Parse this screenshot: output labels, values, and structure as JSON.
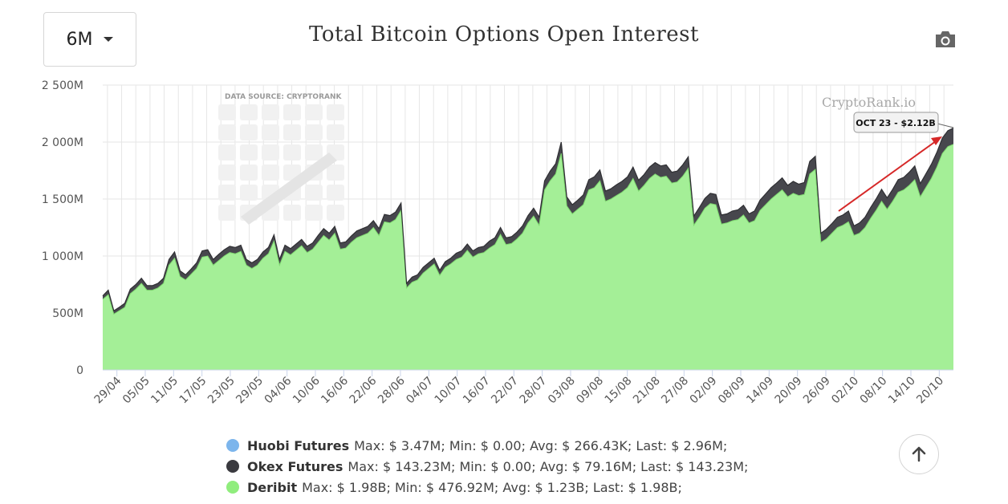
{
  "header": {
    "range_selector": "6M",
    "title": "Total Bitcoin Options Open Interest"
  },
  "icons": {
    "range_caret": "chevron-down-icon",
    "export": "camera-icon",
    "scroll_top": "arrow-up-icon"
  },
  "watermark": {
    "source": "DATA SOURCE:  CRYPTORANK",
    "brand": "CryptoRank.io"
  },
  "callout": {
    "label": "OCT 23 - $2.12B"
  },
  "colors": {
    "deribit": "#a4ef97",
    "okex": "#47474d",
    "huobi": "#7cb5ec",
    "grid": "#e6e6e6",
    "arrow": "#d62828"
  },
  "chart_data": {
    "type": "area",
    "stacked": true,
    "y_ticks": [
      "0",
      "500M",
      "1 000M",
      "1 500M",
      "2 000M",
      "2 500M"
    ],
    "ylim": [
      0,
      2500
    ],
    "y_unit": "M",
    "x_tick_labels": [
      "29/04",
      "05/05",
      "11/05",
      "17/05",
      "23/05",
      "29/05",
      "04/06",
      "10/06",
      "16/06",
      "22/06",
      "28/06",
      "04/07",
      "10/07",
      "16/07",
      "22/07",
      "28/07",
      "03/08",
      "09/08",
      "15/08",
      "21/08",
      "27/08",
      "02/09",
      "08/09",
      "14/09",
      "20/09",
      "26/09",
      "02/10",
      "08/10",
      "14/10",
      "20/10"
    ],
    "x_start": "26/04",
    "x_end": "23/10",
    "grid": true,
    "legend": "bottom",
    "series": [
      {
        "name": "Deribit",
        "values": [
          620,
          660,
          490,
          520,
          550,
          670,
          710,
          760,
          700,
          700,
          720,
          760,
          920,
          980,
          820,
          790,
          840,
          890,
          990,
          1000,
          920,
          960,
          1000,
          1030,
          1020,
          1040,
          920,
          890,
          920,
          980,
          1020,
          1130,
          920,
          1040,
          1010,
          1050,
          1090,
          1030,
          1060,
          1120,
          1180,
          1140,
          1200,
          1060,
          1070,
          1120,
          1160,
          1180,
          1200,
          1250,
          1180,
          1300,
          1290,
          1320,
          1400,
          720,
          770,
          790,
          850,
          890,
          930,
          830,
          900,
          930,
          970,
          990,
          1050,
          990,
          1020,
          1030,
          1070,
          1100,
          1190,
          1100,
          1110,
          1150,
          1200,
          1290,
          1350,
          1270,
          1580,
          1660,
          1720,
          1900,
          1440,
          1370,
          1410,
          1450,
          1580,
          1600,
          1660,
          1480,
          1500,
          1530,
          1560,
          1600,
          1680,
          1570,
          1620,
          1680,
          1720,
          1690,
          1700,
          1640,
          1650,
          1700,
          1770,
          1270,
          1340,
          1420,
          1460,
          1450,
          1280,
          1290,
          1310,
          1320,
          1360,
          1290,
          1310,
          1400,
          1450,
          1500,
          1540,
          1580,
          1520,
          1550,
          1530,
          1540,
          1720,
          1760,
          1120,
          1150,
          1200,
          1250,
          1270,
          1300,
          1180,
          1200,
          1250,
          1330,
          1400,
          1480,
          1410,
          1480,
          1560,
          1580,
          1620,
          1670,
          1520,
          1600,
          1680,
          1780,
          1900,
          1960,
          1980
        ]
      },
      {
        "name": "Okex Futures",
        "values": [
          30,
          40,
          30,
          30,
          35,
          40,
          40,
          45,
          40,
          40,
          40,
          45,
          50,
          55,
          50,
          45,
          45,
          50,
          55,
          55,
          50,
          55,
          55,
          55,
          55,
          55,
          50,
          50,
          50,
          55,
          55,
          55,
          50,
          55,
          55,
          55,
          55,
          55,
          55,
          60,
          60,
          60,
          60,
          55,
          55,
          55,
          60,
          60,
          60,
          60,
          60,
          65,
          65,
          65,
          65,
          40,
          45,
          45,
          50,
          50,
          50,
          45,
          50,
          50,
          55,
          55,
          55,
          55,
          55,
          55,
          60,
          60,
          60,
          60,
          60,
          60,
          65,
          65,
          70,
          70,
          80,
          85,
          90,
          100,
          80,
          80,
          80,
          85,
          90,
          95,
          95,
          90,
          90,
          95,
          95,
          95,
          100,
          95,
          95,
          100,
          100,
          100,
          100,
          95,
          95,
          100,
          100,
          80,
          85,
          85,
          90,
          90,
          80,
          80,
          85,
          85,
          85,
          80,
          85,
          90,
          95,
          100,
          100,
          105,
          100,
          105,
          100,
          105,
          110,
          115,
          80,
          85,
          85,
          90,
          90,
          95,
          85,
          90,
          90,
          95,
          100,
          105,
          100,
          105,
          110,
          110,
          115,
          120,
          115,
          120,
          125,
          130,
          135,
          140,
          143
        ]
      },
      {
        "name": "Huobi Futures",
        "values": [
          0,
          0,
          0,
          0,
          0,
          0,
          0,
          0,
          0,
          0,
          0,
          0,
          0,
          0,
          0,
          0,
          0,
          0,
          0,
          0,
          0,
          0,
          0,
          0,
          0,
          0,
          0,
          0,
          0,
          0,
          0,
          0,
          0,
          0,
          0,
          0,
          0,
          0,
          0,
          0,
          0,
          0,
          0,
          0,
          0,
          0,
          0,
          0,
          0,
          0,
          0,
          0,
          0,
          0,
          0,
          0,
          0,
          0,
          0,
          0,
          0,
          0,
          0,
          0,
          0,
          0,
          0,
          0,
          0,
          0,
          0,
          0,
          0,
          0,
          0,
          0,
          0,
          0,
          0,
          0,
          0,
          0,
          0,
          0,
          0,
          0,
          0,
          0,
          0,
          0,
          0,
          0,
          0,
          0,
          0,
          0,
          0,
          0,
          0,
          0,
          0,
          0,
          0,
          0,
          0,
          0,
          0,
          0,
          0,
          0,
          0,
          0,
          0,
          0,
          0,
          0,
          0,
          0,
          0,
          0,
          0,
          0,
          0,
          0,
          0,
          0,
          0,
          0,
          0,
          0,
          0,
          0,
          0,
          0,
          0,
          0,
          0,
          0,
          0,
          0,
          0,
          0,
          0,
          0,
          0,
          0,
          0,
          0,
          0,
          0,
          0,
          0,
          0,
          2,
          3
        ]
      }
    ]
  },
  "legend": {
    "items": [
      {
        "name": "Huobi Futures",
        "stats": "Max: $ 3.47M; Min: $ 0.00; Avg: $ 266.43K; Last: $ 2.96M;",
        "color": "#7cb5ec"
      },
      {
        "name": "Okex Futures",
        "stats": "Max: $ 143.23M; Min: $ 0.00; Avg: $ 79.16M; Last: $ 143.23M;",
        "color": "#3a3a3f"
      },
      {
        "name": "Deribit",
        "stats": "Max: $ 1.98B; Min: $ 476.92M; Avg: $ 1.23B; Last: $ 1.98B;",
        "color": "#90ed7d"
      }
    ]
  }
}
